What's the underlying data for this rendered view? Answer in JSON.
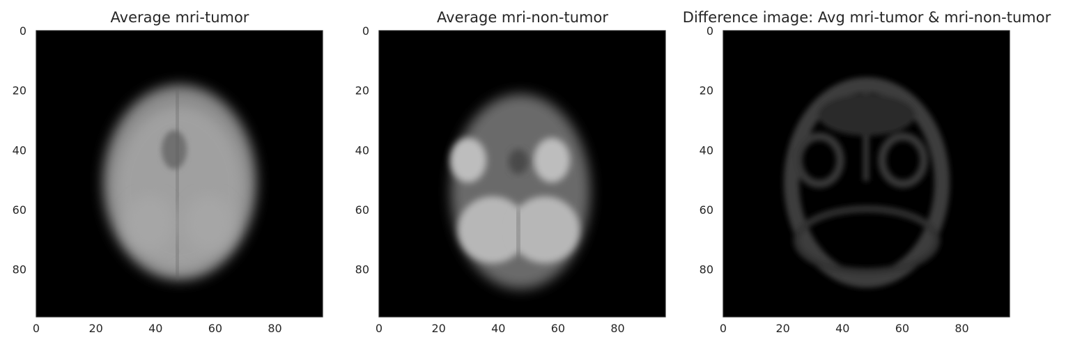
{
  "chart_data": [
    {
      "type": "heatmap",
      "title": "Average mri-tumor",
      "image": "averaged brain MRI (axial), grayscale",
      "xlim": [
        0,
        96
      ],
      "ylim": [
        96,
        0
      ],
      "xticks": [
        0,
        20,
        40,
        60,
        80
      ],
      "yticks": [
        0,
        20,
        40,
        60,
        80
      ],
      "colormap": "gray",
      "grid": false
    },
    {
      "type": "heatmap",
      "title": "Average mri-non-tumor",
      "image": "averaged brain MRI (axial, lower slice), grayscale",
      "xlim": [
        0,
        96
      ],
      "ylim": [
        96,
        0
      ],
      "xticks": [
        0,
        20,
        40,
        60,
        80
      ],
      "yticks": [
        0,
        20,
        40,
        60,
        80
      ],
      "colormap": "gray",
      "grid": false
    },
    {
      "type": "heatmap",
      "title": "Difference image: Avg mri-tumor & mri-non-tumor",
      "image": "absolute difference of the two averages, grayscale",
      "xlim": [
        0,
        96
      ],
      "ylim": [
        96,
        0
      ],
      "xticks": [
        0,
        20,
        40,
        60,
        80
      ],
      "yticks": [
        0,
        20,
        40,
        60,
        80
      ],
      "colormap": "gray",
      "grid": false
    }
  ],
  "colors": {
    "image_bg": "#000000",
    "axis_edge": "#262626",
    "text": "#262626"
  }
}
